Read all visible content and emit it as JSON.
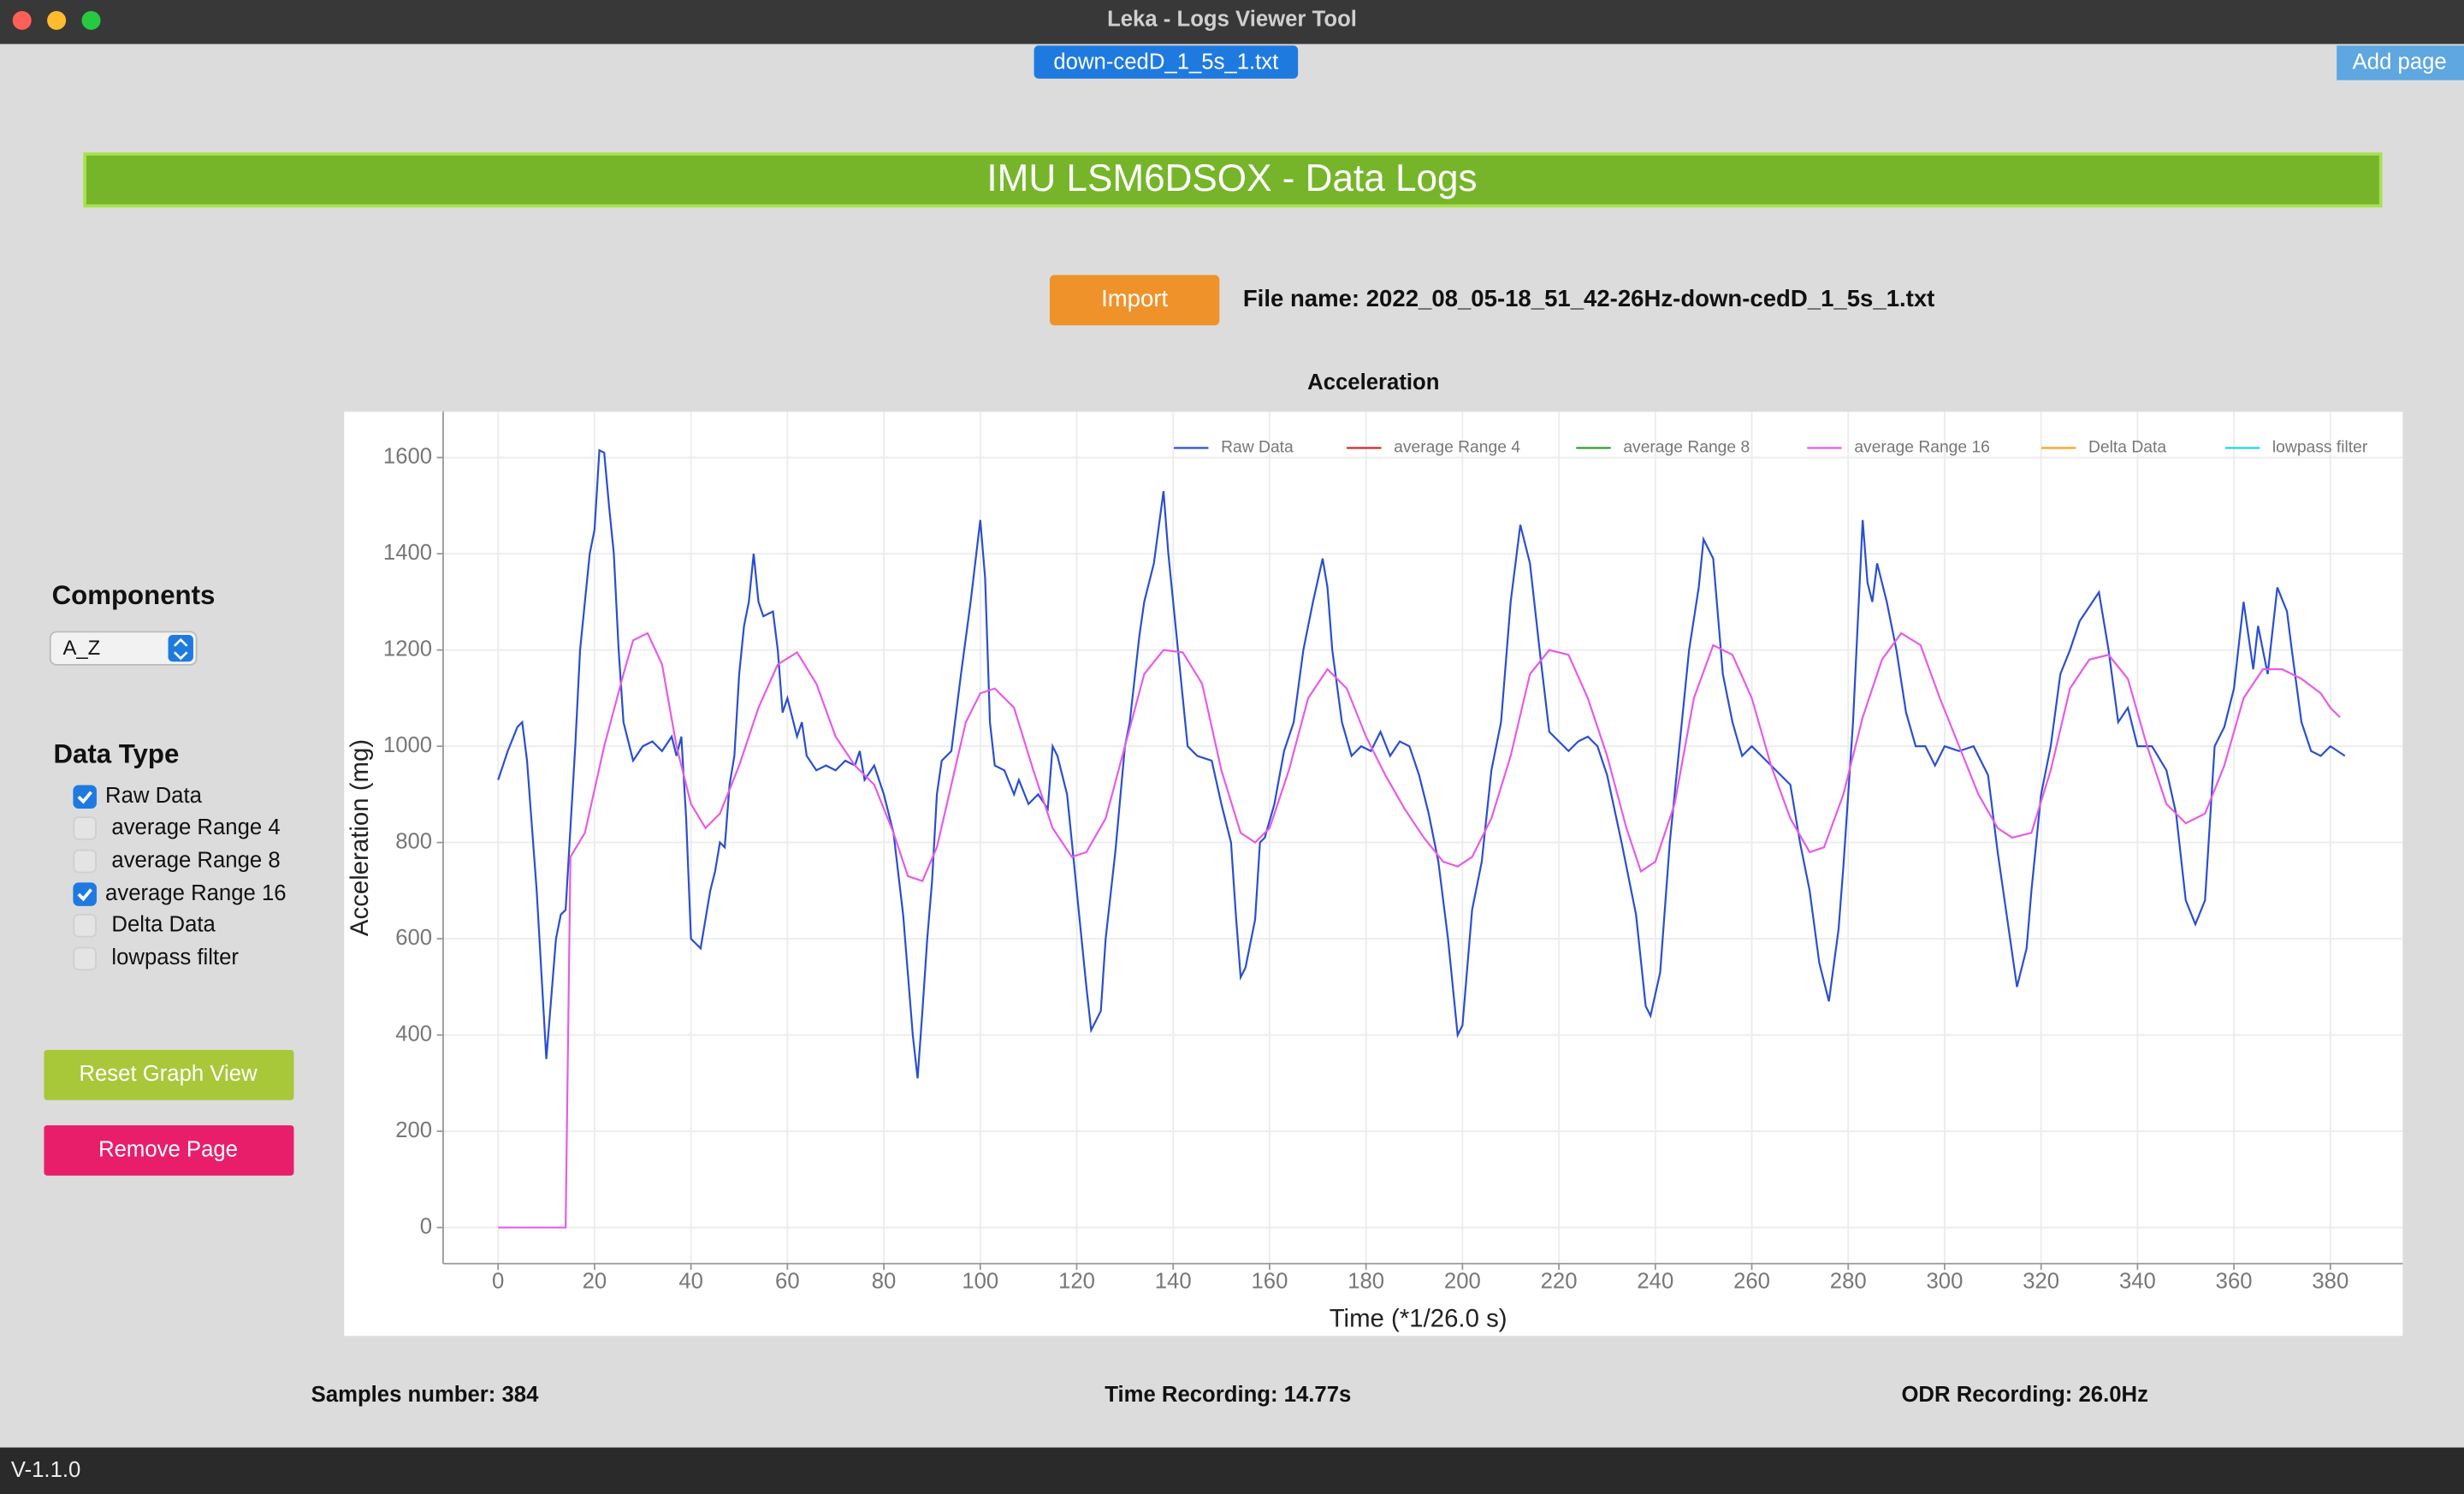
{
  "window": {
    "title": "Leka - Logs Viewer Tool",
    "tab": "down-cedD_1_5s_1.txt",
    "add_page": "Add page",
    "version": "V-1.1.0"
  },
  "header": {
    "title": "IMU LSM6DSOX - Data Logs",
    "import": "Import",
    "file_name": "File name: 2022_08_05-18_51_42-26Hz-down-cedD_1_5s_1.txt"
  },
  "sidebar": {
    "components_title": "Components",
    "component": "A_Z",
    "data_type_title": "Data Type",
    "data_types": [
      {
        "label": "Raw Data",
        "checked": true
      },
      {
        "label": "average Range 4",
        "checked": false
      },
      {
        "label": "average Range 8",
        "checked": false
      },
      {
        "label": "average Range 16",
        "checked": true
      },
      {
        "label": "Delta Data",
        "checked": false
      },
      {
        "label": "lowpass filter",
        "checked": false
      }
    ],
    "reset": "Reset Graph View",
    "remove": "Remove Page"
  },
  "footer": {
    "samples": "Samples number: 384",
    "time": "Time Recording: 14.77s",
    "odr": "ODR Recording: 26.0Hz"
  },
  "chart_data": {
    "type": "line",
    "title": "Acceleration",
    "x_label": "Time (*1/26.0 s)",
    "y_label": "Acceleration (mg)",
    "xlim": [
      -11.4,
      395
    ],
    "ylim": [
      -75,
      1695
    ],
    "xticks": [
      0,
      20,
      40,
      60,
      80,
      100,
      120,
      140,
      160,
      180,
      200,
      220,
      240,
      260,
      280,
      300,
      320,
      340,
      360,
      380
    ],
    "yticks": [
      0,
      200,
      400,
      600,
      800,
      1000,
      1200,
      1400,
      1600
    ],
    "grid": true,
    "series": [
      {
        "name": "Raw Data",
        "color": "#2a4fd0",
        "x": [
          0,
          2,
          4,
          5,
          6,
          8,
          10,
          12,
          13,
          14,
          16,
          17,
          19,
          20,
          21,
          22,
          23,
          24,
          25,
          26,
          28,
          30,
          32,
          34,
          36,
          37,
          38,
          39,
          40,
          41,
          42,
          44,
          45,
          46,
          47,
          48,
          49,
          50,
          51,
          52,
          53,
          54,
          55,
          57,
          58,
          59,
          60,
          62,
          63,
          64,
          66,
          68,
          70,
          72,
          74,
          75,
          76,
          78,
          80,
          82,
          84,
          86,
          87,
          88,
          89,
          90,
          91,
          92,
          94,
          96,
          98,
          100,
          101,
          102,
          103,
          105,
          107,
          108,
          110,
          112,
          114,
          115,
          116,
          118,
          120,
          122,
          123,
          125,
          126,
          128,
          130,
          131,
          133,
          134,
          136,
          138,
          139,
          140,
          141,
          143,
          145,
          148,
          150,
          152,
          153,
          154,
          155,
          157,
          158,
          159,
          161,
          163,
          165,
          167,
          169,
          171,
          172,
          173,
          175,
          177,
          179,
          181,
          183,
          185,
          187,
          189,
          191,
          193,
          195,
          197,
          199,
          200,
          202,
          204,
          206,
          208,
          210,
          212,
          214,
          216,
          218,
          220,
          222,
          224,
          226,
          228,
          230,
          233,
          236,
          238,
          239,
          241,
          243,
          245,
          247,
          249,
          250,
          252,
          254,
          256,
          258,
          260,
          263,
          265,
          268,
          270,
          272,
          274,
          276,
          278,
          279,
          281,
          283,
          284,
          285,
          286,
          288,
          290,
          292,
          294,
          296,
          298,
          300,
          303,
          306,
          309,
          311,
          313,
          315,
          317,
          318,
          320,
          322,
          324,
          326,
          328,
          330,
          332,
          334,
          336,
          338,
          340,
          343,
          346,
          348,
          350,
          352,
          354,
          356,
          358,
          360,
          362,
          364,
          365,
          367,
          369,
          371,
          372,
          374,
          376,
          378,
          380,
          383
        ],
        "values": [
          930,
          990,
          1040,
          1050,
          970,
          700,
          350,
          600,
          650,
          660,
          1000,
          1200,
          1400,
          1450,
          1615,
          1610,
          1500,
          1400,
          1200,
          1050,
          970,
          1000,
          1010,
          990,
          1020,
          980,
          1020,
          850,
          600,
          590,
          580,
          700,
          740,
          800,
          790,
          920,
          980,
          1150,
          1250,
          1300,
          1400,
          1300,
          1270,
          1280,
          1200,
          1070,
          1100,
          1020,
          1050,
          980,
          950,
          960,
          950,
          970,
          960,
          990,
          930,
          960,
          900,
          820,
          650,
          400,
          310,
          450,
          600,
          720,
          900,
          970,
          990,
          1150,
          1300,
          1470,
          1350,
          1050,
          960,
          950,
          900,
          930,
          880,
          900,
          870,
          1000,
          980,
          900,
          700,
          500,
          410,
          450,
          600,
          780,
          1000,
          1050,
          1230,
          1300,
          1380,
          1530,
          1400,
          1300,
          1200,
          1000,
          980,
          970,
          880,
          800,
          650,
          520,
          540,
          640,
          800,
          810,
          880,
          990,
          1050,
          1200,
          1300,
          1390,
          1330,
          1200,
          1050,
          980,
          1000,
          990,
          1030,
          980,
          1010,
          1000,
          940,
          860,
          760,
          600,
          400,
          420,
          660,
          760,
          950,
          1050,
          1300,
          1460,
          1380,
          1200,
          1030,
          1010,
          990,
          1010,
          1020,
          1000,
          940,
          800,
          650,
          460,
          440,
          530,
          800,
          1000,
          1200,
          1330,
          1430,
          1390,
          1150,
          1050,
          980,
          1000,
          970,
          950,
          920,
          800,
          700,
          550,
          470,
          620,
          750,
          1050,
          1470,
          1340,
          1300,
          1380,
          1300,
          1200,
          1070,
          1000,
          1000,
          960,
          1000,
          990,
          1000,
          940,
          780,
          640,
          500,
          580,
          700,
          900,
          1000,
          1150,
          1200,
          1260,
          1290,
          1320,
          1200,
          1050,
          1080,
          1000,
          1000,
          950,
          860,
          680,
          630,
          680,
          1000,
          1040,
          1120,
          1300,
          1160,
          1250,
          1150,
          1330,
          1280,
          1200,
          1050,
          990,
          980,
          1000,
          980
        ]
      },
      {
        "name": "average Range 4",
        "color": "#d62728",
        "x": [],
        "values": []
      },
      {
        "name": "average Range 8",
        "color": "#2ca02c",
        "x": [],
        "values": []
      },
      {
        "name": "average Range 16",
        "color": "#e65ce6",
        "x": [
          0,
          14,
          15,
          18,
          22,
          26,
          28,
          31,
          34,
          37,
          40,
          43,
          46,
          50,
          54,
          58,
          62,
          66,
          70,
          74,
          78,
          82,
          85,
          88,
          91,
          94,
          97,
          100,
          103,
          107,
          111,
          115,
          119,
          122,
          126,
          130,
          134,
          138,
          142,
          146,
          150,
          154,
          157,
          160,
          164,
          168,
          172,
          176,
          180,
          184,
          188,
          192,
          196,
          199,
          202,
          206,
          210,
          214,
          218,
          222,
          226,
          230,
          234,
          237,
          240,
          244,
          248,
          252,
          256,
          260,
          264,
          268,
          272,
          275,
          279,
          283,
          287,
          291,
          295,
          299,
          303,
          307,
          311,
          314,
          318,
          322,
          326,
          330,
          334,
          338,
          342,
          346,
          350,
          354,
          358,
          362,
          366,
          370,
          374,
          378,
          380,
          382
        ],
        "values": [
          0,
          0,
          770,
          820,
          1000,
          1150,
          1220,
          1235,
          1170,
          1000,
          880,
          830,
          860,
          960,
          1080,
          1170,
          1195,
          1130,
          1020,
          960,
          920,
          820,
          730,
          720,
          790,
          920,
          1050,
          1110,
          1120,
          1080,
          950,
          830,
          770,
          780,
          850,
          1000,
          1150,
          1200,
          1195,
          1130,
          950,
          820,
          800,
          830,
          950,
          1100,
          1160,
          1120,
          1020,
          940,
          870,
          810,
          760,
          750,
          770,
          850,
          980,
          1150,
          1200,
          1190,
          1100,
          980,
          830,
          740,
          760,
          880,
          1100,
          1210,
          1190,
          1100,
          960,
          850,
          780,
          790,
          900,
          1060,
          1180,
          1235,
          1210,
          1100,
          1000,
          900,
          830,
          810,
          820,
          950,
          1120,
          1180,
          1190,
          1140,
          1000,
          880,
          840,
          860,
          960,
          1100,
          1160,
          1160,
          1140,
          1110,
          1080,
          1060
        ]
      },
      {
        "name": "Delta Data",
        "color": "#ff9f1c",
        "x": [],
        "values": []
      },
      {
        "name": "lowpass filter",
        "color": "#1fd3e8",
        "x": [],
        "values": []
      }
    ]
  }
}
